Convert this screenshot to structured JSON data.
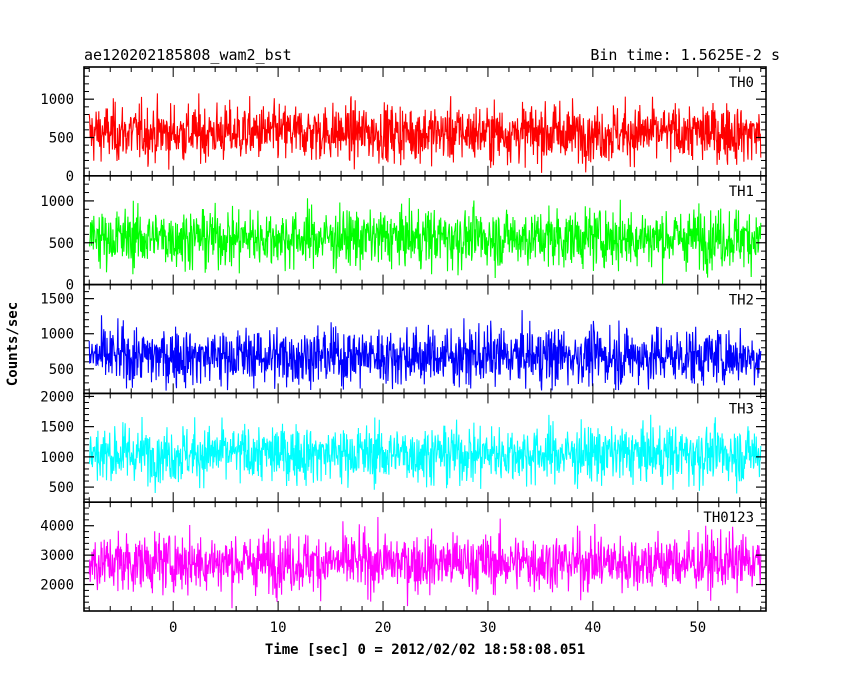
{
  "chart_data": {
    "type": "line",
    "title_left": "ae120202185808_wam2_bst",
    "title_right": "Bin time: 1.5625E-2 s",
    "xlabel": "Time [sec] 0 = 2012/02/02 18:58:08.051",
    "ylabel": "Counts/sec",
    "xlim": [
      -8.5,
      56.5
    ],
    "x_ticks": [
      0,
      10,
      20,
      30,
      40,
      50
    ],
    "x_tick_labels": [
      "0",
      "10",
      "20",
      "30",
      "40",
      "50"
    ],
    "data_x_range": [
      -8.0,
      56.0
    ],
    "panels": [
      {
        "name": "TH0",
        "color": "#ff0000",
        "ylim": [
          0,
          1420
        ],
        "y_ticks": [
          0,
          500,
          1000
        ],
        "y_tick_labels": [
          "0",
          "500",
          "1000"
        ],
        "mean": 560,
        "min": 30,
        "max": 1420
      },
      {
        "name": "TH1",
        "color": "#00ff00",
        "ylim": [
          0,
          1300
        ],
        "y_ticks": [
          0,
          500,
          1000
        ],
        "y_tick_labels": [
          "0",
          "500",
          "1000"
        ],
        "mean": 560,
        "min": 0,
        "max": 1300
      },
      {
        "name": "TH2",
        "color": "#0000ff",
        "ylim": [
          150,
          1700
        ],
        "y_ticks": [
          500,
          1000,
          1500
        ],
        "y_tick_labels": [
          "500",
          "1000",
          "1500"
        ],
        "mean": 680,
        "min": 180,
        "max": 1700
      },
      {
        "name": "TH3",
        "color": "#00ffff",
        "ylim": [
          250,
          2050
        ],
        "y_ticks": [
          500,
          1000,
          1500,
          2000
        ],
        "y_tick_labels": [
          "500",
          "1000",
          "1500",
          "2000"
        ],
        "mean": 1050,
        "min": 280,
        "max": 2050
      },
      {
        "name": "TH0123",
        "color": "#ff00ff",
        "ylim": [
          1100,
          4800
        ],
        "y_ticks": [
          2000,
          3000,
          4000
        ],
        "y_tick_labels": [
          "2000",
          "3000",
          "4000"
        ],
        "mean": 2750,
        "min": 1150,
        "max": 4800
      }
    ]
  }
}
